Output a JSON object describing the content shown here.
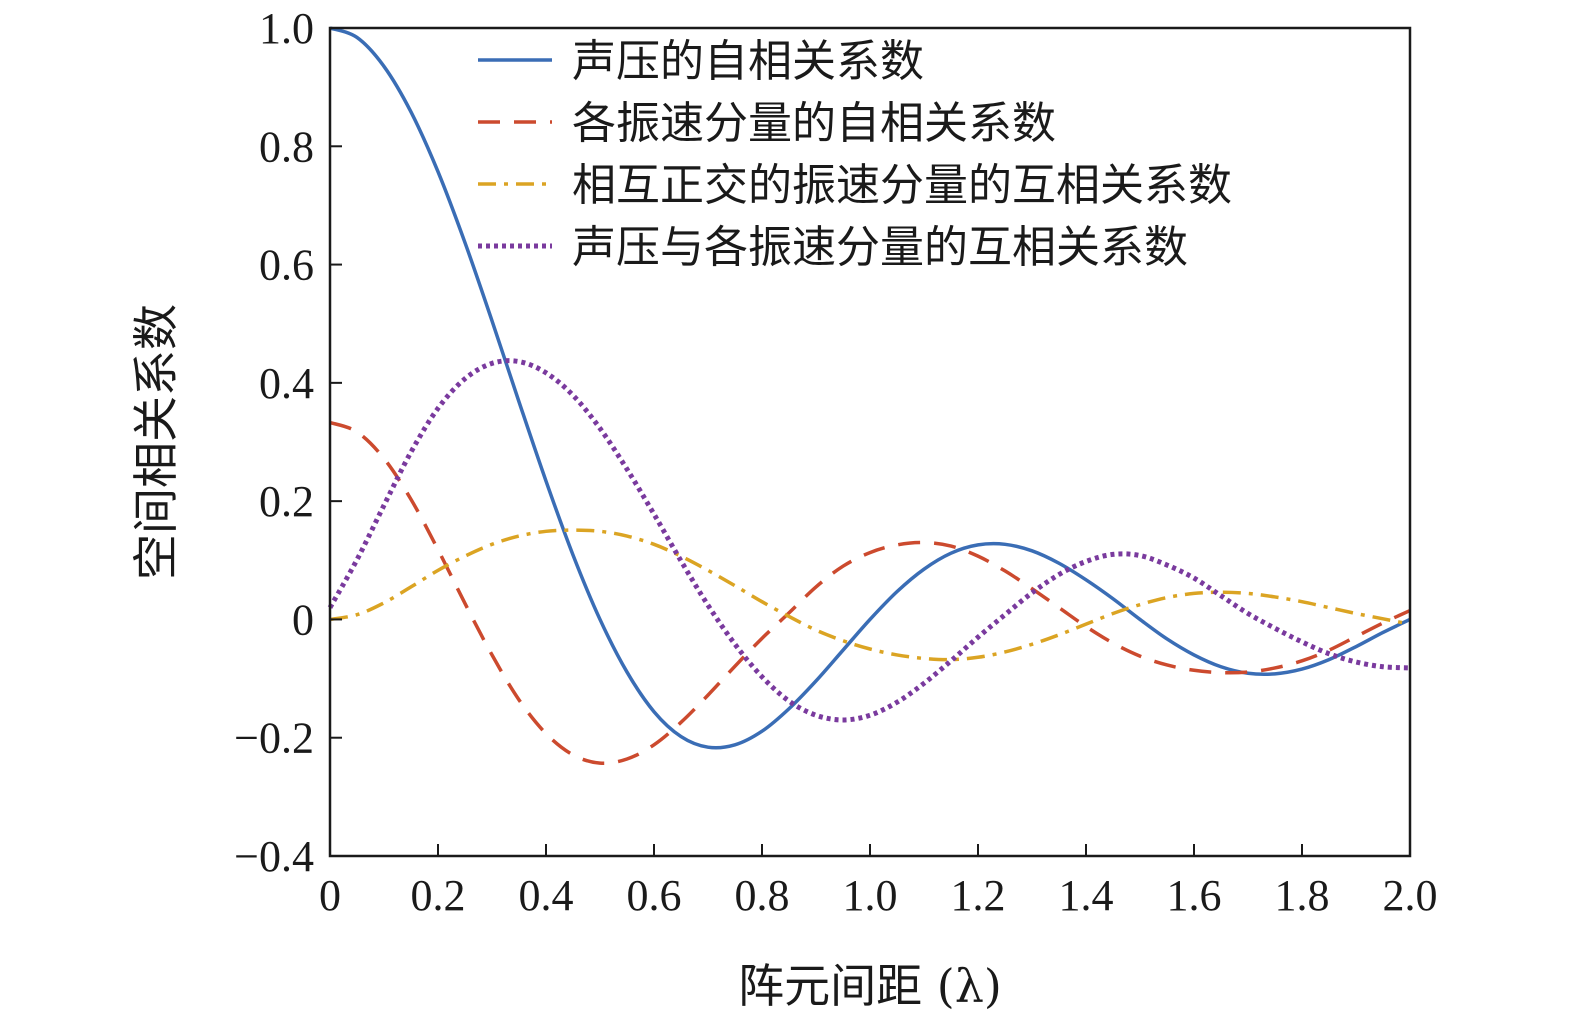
{
  "chart_data": {
    "type": "line",
    "title": "",
    "xlabel": "阵元间距 (λ)",
    "ylabel": "空间相关系数",
    "xlim": [
      0,
      2.0
    ],
    "ylim": [
      -0.4,
      1.0
    ],
    "xticks": [
      "0",
      "0.2",
      "0.4",
      "0.6",
      "0.8",
      "1.0",
      "1.2",
      "1.4",
      "1.6",
      "1.8",
      "2.0"
    ],
    "yticks": [
      "−0.4",
      "−0.2",
      "0",
      "0.2",
      "0.4",
      "0.6",
      "0.8",
      "1.0"
    ],
    "grid": false,
    "legend_position": "top-right",
    "x": [
      0,
      0.05,
      0.1,
      0.15,
      0.2,
      0.25,
      0.3,
      0.35,
      0.4,
      0.45,
      0.5,
      0.55,
      0.6,
      0.65,
      0.7,
      0.75,
      0.8,
      0.85,
      0.9,
      0.95,
      1.0,
      1.05,
      1.1,
      1.15,
      1.2,
      1.25,
      1.3,
      1.35,
      1.4,
      1.45,
      1.5,
      1.55,
      1.6,
      1.65,
      1.7,
      1.75,
      1.8,
      1.85,
      1.9,
      1.95,
      2.0
    ],
    "series": [
      {
        "name": "声压的自相关系数",
        "color": "#3a6db5",
        "dash": "solid",
        "values": [
          1.0,
          0.984,
          0.935,
          0.858,
          0.757,
          0.637,
          0.505,
          0.368,
          0.234,
          0.109,
          0.0,
          -0.089,
          -0.156,
          -0.198,
          -0.216,
          -0.212,
          -0.189,
          -0.151,
          -0.104,
          -0.052,
          0.0,
          0.047,
          0.085,
          0.112,
          0.126,
          0.127,
          0.116,
          0.095,
          0.067,
          0.035,
          0.0,
          -0.033,
          -0.06,
          -0.08,
          -0.091,
          -0.092,
          -0.084,
          -0.068,
          -0.046,
          -0.022,
          0.0
        ]
      },
      {
        "name": "各振速分量的自相关系数",
        "color": "#cc4a2e",
        "dash": "dashed",
        "values": [
          0.333,
          0.317,
          0.272,
          0.203,
          0.118,
          0.027,
          -0.06,
          -0.136,
          -0.193,
          -0.229,
          -0.243,
          -0.236,
          -0.212,
          -0.174,
          -0.128,
          -0.079,
          -0.032,
          0.011,
          0.055,
          0.09,
          0.113,
          0.126,
          0.13,
          0.124,
          0.107,
          0.082,
          0.052,
          0.02,
          -0.012,
          -0.04,
          -0.062,
          -0.077,
          -0.086,
          -0.09,
          -0.089,
          -0.082,
          -0.07,
          -0.052,
          -0.029,
          -0.006,
          0.015
        ]
      },
      {
        "name": "相互正交的振速分量的互相关系数",
        "color": "#dba423",
        "dash": "dashdot",
        "values": [
          0.0,
          0.008,
          0.028,
          0.055,
          0.083,
          0.107,
          0.127,
          0.141,
          0.149,
          0.151,
          0.149,
          0.141,
          0.127,
          0.107,
          0.083,
          0.057,
          0.03,
          0.005,
          -0.018,
          -0.036,
          -0.05,
          -0.06,
          -0.066,
          -0.068,
          -0.064,
          -0.055,
          -0.042,
          -0.026,
          -0.008,
          0.01,
          0.025,
          0.037,
          0.044,
          0.046,
          0.044,
          0.038,
          0.03,
          0.02,
          0.01,
          0.001,
          -0.008
        ]
      },
      {
        "name": "声压与各振速分量的互相关系数",
        "color": "#7a3a9e",
        "dash": "dotted",
        "values": [
          0.02,
          0.101,
          0.193,
          0.283,
          0.357,
          0.407,
          0.433,
          0.436,
          0.417,
          0.379,
          0.323,
          0.254,
          0.178,
          0.099,
          0.024,
          -0.042,
          -0.097,
          -0.138,
          -0.162,
          -0.17,
          -0.162,
          -0.14,
          -0.108,
          -0.07,
          -0.03,
          0.008,
          0.045,
          0.076,
          0.098,
          0.11,
          0.108,
          0.092,
          0.07,
          0.04,
          0.01,
          -0.015,
          -0.038,
          -0.058,
          -0.072,
          -0.08,
          -0.082
        ]
      }
    ]
  }
}
